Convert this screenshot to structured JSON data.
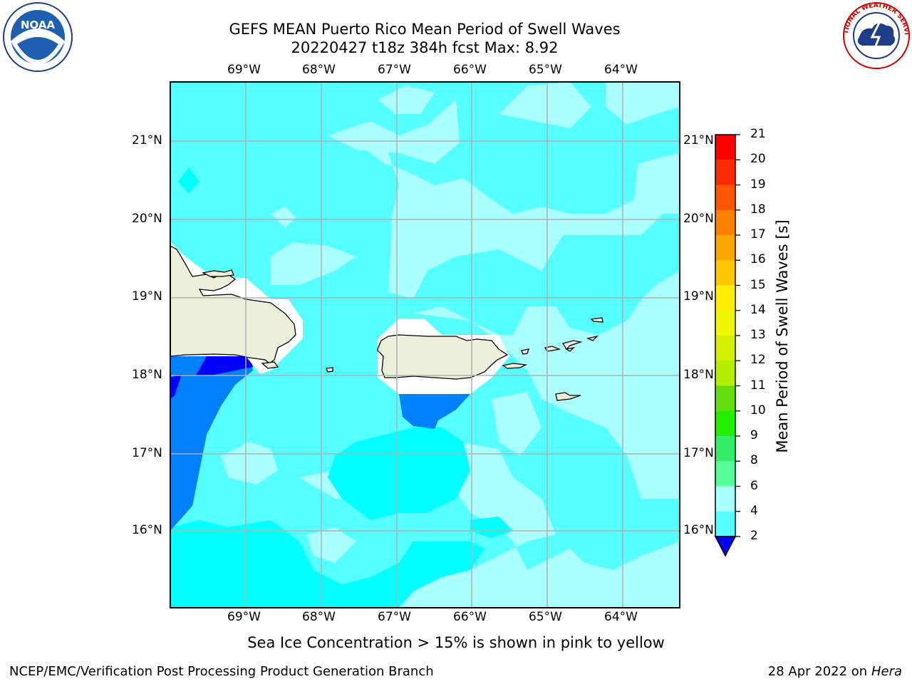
{
  "title_line1": "GEFS MEAN Puerto Rico Mean Period of Swell Waves",
  "title_line2": "20220427 t18z 384h fcst   Max: 8.92",
  "longitudes": [
    "69°W",
    "68°W",
    "67°W",
    "66°W",
    "65°W",
    "64°W"
  ],
  "latitudes": [
    "21°N",
    "20°N",
    "19°N",
    "18°N",
    "17°N",
    "16°N"
  ],
  "colorbar": {
    "label": "Mean Period of Swell Waves [s]",
    "ticks": [
      "21",
      "20",
      "19",
      "18",
      "17",
      "16",
      "15",
      "14",
      "13",
      "12",
      "11",
      "10",
      "9",
      "8",
      "6",
      "4",
      "2"
    ],
    "colors": [
      "#ff0000",
      "#ff2a00",
      "#ff5500",
      "#ff7f00",
      "#ffa500",
      "#ffc800",
      "#ffee00",
      "#f0f500",
      "#d4f000",
      "#b4ee00",
      "#66dd11",
      "#22ee00",
      "#33ee66",
      "#55ff99",
      "#aaffff",
      "#55ffff",
      "#00ffff",
      "#0080ff"
    ],
    "under_color": "#0000ff"
  },
  "legend_colors": {
    "land": "#eeeedb",
    "ocean_light": "#aaffff",
    "ocean_mid": "#55ffff",
    "ocean_cyan": "#00ffff",
    "ocean_blue": "#0080ff",
    "ocean_deep": "#0000ff",
    "grid": "#b0b0b0"
  },
  "caption": "Sea Ice Concentration > 15% is shown in pink to yellow",
  "footer_left": "NCEP/EMC/Verification Post Processing Product Generation Branch",
  "footer_date": "28 Apr 2022 on ",
  "footer_machine": "Hera",
  "logos": {
    "left": {
      "icon": "noaa-logo-icon",
      "text": "NOAA"
    },
    "right": {
      "icon": "nws-logo-icon",
      "text": "NATIONAL WEATHER SERVICE"
    }
  }
}
